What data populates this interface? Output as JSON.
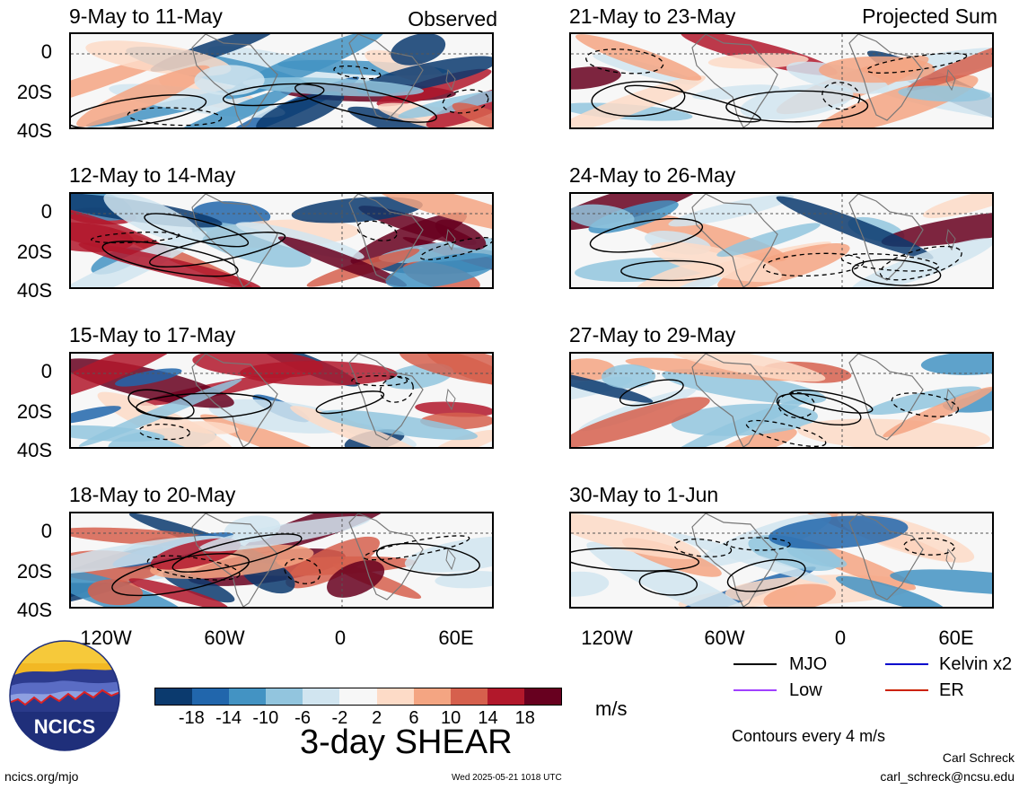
{
  "panels": [
    {
      "title": "9-May to 11-May",
      "label": "Observed"
    },
    {
      "title": "12-May to 14-May",
      "label": ""
    },
    {
      "title": "15-May to 17-May",
      "label": ""
    },
    {
      "title": "18-May to 20-May",
      "label": ""
    },
    {
      "title": "21-May to 23-May",
      "label": "Projected Sum"
    },
    {
      "title": "24-May to 26-May",
      "label": ""
    },
    {
      "title": "27-May to 29-May",
      "label": ""
    },
    {
      "title": "30-May to 1-Jun",
      "label": ""
    }
  ],
  "lat_labels": [
    "0",
    "20S",
    "40S"
  ],
  "lon_labels": [
    "120W",
    "60W",
    "0",
    "60E"
  ],
  "colorbar": {
    "ticks": [
      "-18",
      "-14",
      "-10",
      "-6",
      "-2",
      "2",
      "6",
      "10",
      "14",
      "18"
    ],
    "colors": [
      "#0b3a6e",
      "#2166ac",
      "#4393c3",
      "#92c5de",
      "#d1e5f0",
      "#f7f7f7",
      "#fddbc7",
      "#f4a582",
      "#d6604d",
      "#b2182b",
      "#67001f"
    ],
    "units": "m/s",
    "title": "3-day SHEAR"
  },
  "legend": {
    "mjo": "MJO",
    "kelvin": "Kelvin x2",
    "low": "Low",
    "er": "ER",
    "mjo_color": "#000000",
    "kelvin_color": "#0000cc",
    "low_color": "#a040ff",
    "er_color": "#cc2200"
  },
  "contour_note": "Contours every 4 m/s",
  "author": "Carl Schreck",
  "email": "carl_schreck@ncsu.edu",
  "site": "ncics.org/mjo",
  "timestamp": "Wed 2025-05-21 1018 UTC",
  "logo_text": "NCICS"
}
